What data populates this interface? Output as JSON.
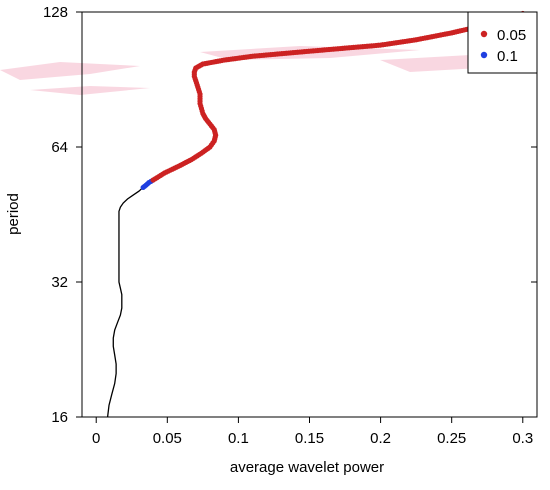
{
  "chart_data": {
    "type": "line",
    "title": "",
    "xlabel": "average wavelet power",
    "ylabel": "period",
    "xlim": [
      -0.01,
      0.31
    ],
    "ylim": [
      16,
      128
    ],
    "y_scale": "log2",
    "x_ticks": [
      {
        "value": 0,
        "label": "0"
      },
      {
        "value": 0.05,
        "label": "0.05"
      },
      {
        "value": 0.1,
        "label": "0.1"
      },
      {
        "value": 0.15,
        "label": "0.15"
      },
      {
        "value": 0.2,
        "label": "0.2"
      },
      {
        "value": 0.25,
        "label": "0.25"
      },
      {
        "value": 0.3,
        "label": "0.3"
      }
    ],
    "y_ticks": [
      {
        "value": 16,
        "label": "16"
      },
      {
        "value": 32,
        "label": "32"
      },
      {
        "value": 64,
        "label": "64"
      },
      {
        "value": 128,
        "label": "128"
      }
    ],
    "grid": false,
    "legend_position": "top-right",
    "legend": [
      {
        "label": "0.05",
        "color": "#cc2222"
      },
      {
        "label": "0.1",
        "color": "#1f3fe0"
      }
    ],
    "series": [
      {
        "line_color": "#000000",
        "points": [
          {
            "x": 0.008,
            "y": 16
          },
          {
            "x": 0.009,
            "y": 17
          },
          {
            "x": 0.011,
            "y": 18
          },
          {
            "x": 0.013,
            "y": 19
          },
          {
            "x": 0.014,
            "y": 20
          },
          {
            "x": 0.014,
            "y": 21
          },
          {
            "x": 0.013,
            "y": 22
          },
          {
            "x": 0.012,
            "y": 23
          },
          {
            "x": 0.012,
            "y": 24
          },
          {
            "x": 0.013,
            "y": 25
          },
          {
            "x": 0.015,
            "y": 26
          },
          {
            "x": 0.017,
            "y": 27
          },
          {
            "x": 0.018,
            "y": 28
          },
          {
            "x": 0.018,
            "y": 29
          },
          {
            "x": 0.018,
            "y": 30
          },
          {
            "x": 0.017,
            "y": 31
          },
          {
            "x": 0.016,
            "y": 32
          },
          {
            "x": 0.016,
            "y": 33
          },
          {
            "x": 0.016,
            "y": 34
          },
          {
            "x": 0.016,
            "y": 35
          },
          {
            "x": 0.016,
            "y": 36
          },
          {
            "x": 0.016,
            "y": 37
          },
          {
            "x": 0.016,
            "y": 38
          },
          {
            "x": 0.016,
            "y": 39
          },
          {
            "x": 0.016,
            "y": 40
          },
          {
            "x": 0.016,
            "y": 41
          },
          {
            "x": 0.016,
            "y": 42
          },
          {
            "x": 0.016,
            "y": 43
          },
          {
            "x": 0.016,
            "y": 44
          },
          {
            "x": 0.016,
            "y": 45
          },
          {
            "x": 0.016,
            "y": 46
          },
          {
            "x": 0.017,
            "y": 47
          },
          {
            "x": 0.019,
            "y": 48
          },
          {
            "x": 0.022,
            "y": 49
          },
          {
            "x": 0.026,
            "y": 50
          },
          {
            "x": 0.03,
            "y": 51
          },
          {
            "x": 0.033,
            "y": 52
          }
        ]
      },
      {
        "name": "0.1",
        "marker_color": "#1f3fe0",
        "points": [
          {
            "x": 0.033,
            "y": 52
          },
          {
            "x": 0.035,
            "y": 52.6
          },
          {
            "x": 0.037,
            "y": 53.3
          },
          {
            "x": 0.04,
            "y": 54
          }
        ]
      },
      {
        "name": "0.05",
        "marker_color": "#cc2222",
        "points": [
          {
            "x": 0.04,
            "y": 54
          },
          {
            "x": 0.048,
            "y": 56
          },
          {
            "x": 0.058,
            "y": 58
          },
          {
            "x": 0.067,
            "y": 60
          },
          {
            "x": 0.074,
            "y": 62
          },
          {
            "x": 0.08,
            "y": 64
          },
          {
            "x": 0.083,
            "y": 66
          },
          {
            "x": 0.084,
            "y": 68
          },
          {
            "x": 0.083,
            "y": 70
          },
          {
            "x": 0.08,
            "y": 72
          },
          {
            "x": 0.077,
            "y": 74
          },
          {
            "x": 0.075,
            "y": 76
          },
          {
            "x": 0.074,
            "y": 78
          },
          {
            "x": 0.073,
            "y": 80
          },
          {
            "x": 0.073,
            "y": 82
          },
          {
            "x": 0.073,
            "y": 84
          },
          {
            "x": 0.072,
            "y": 86
          },
          {
            "x": 0.071,
            "y": 88
          },
          {
            "x": 0.07,
            "y": 90
          },
          {
            "x": 0.069,
            "y": 92
          },
          {
            "x": 0.069,
            "y": 94
          },
          {
            "x": 0.07,
            "y": 96
          },
          {
            "x": 0.075,
            "y": 98
          },
          {
            "x": 0.09,
            "y": 100
          },
          {
            "x": 0.11,
            "y": 102
          },
          {
            "x": 0.14,
            "y": 104
          },
          {
            "x": 0.17,
            "y": 106
          },
          {
            "x": 0.2,
            "y": 108
          },
          {
            "x": 0.225,
            "y": 111
          },
          {
            "x": 0.25,
            "y": 115
          },
          {
            "x": 0.275,
            "y": 120
          },
          {
            "x": 0.29,
            "y": 124
          },
          {
            "x": 0.3,
            "y": 127
          }
        ]
      }
    ]
  }
}
